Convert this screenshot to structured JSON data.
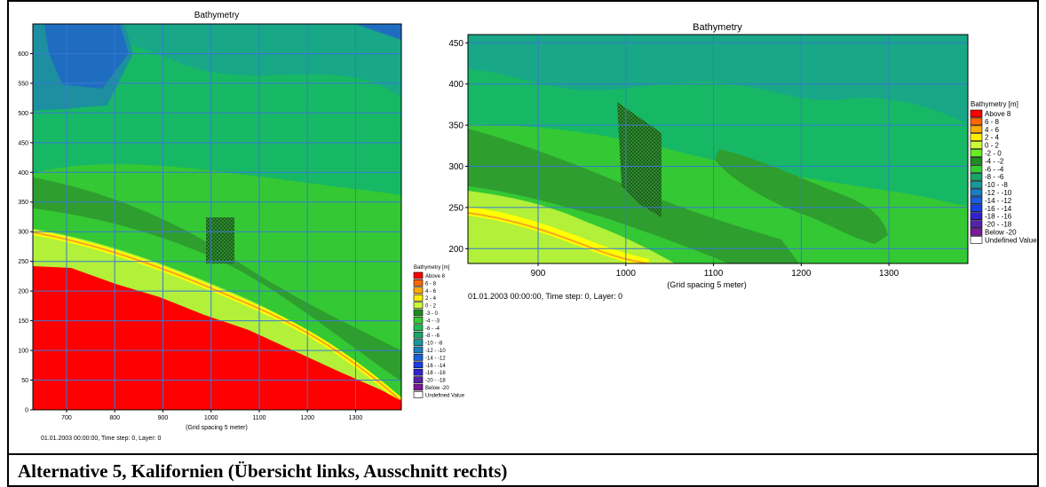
{
  "caption": "Alternative 5, Kalifornien (Übersicht links, Ausschnitt rechts)",
  "colors": {
    "land": "#ff0000",
    "zone_0_2": "#b2f03a",
    "zone_2_4": "#ffff00",
    "zone_4_6": "#f5a623",
    "zone_m2_m4": "#2e9e2e",
    "zone_m4_m6": "#34c834",
    "zone_m6_m8": "#17b865",
    "zone_m8_m10": "#18a787",
    "zone_m10_m12": "#1c8fa0",
    "zone_m12_m14": "#1f6dc0",
    "grid": "#3a78d4"
  },
  "legend_left": {
    "title": "Bathymetry [m]",
    "items": [
      {
        "label": "Above  8",
        "color": "#ff0000"
      },
      {
        "label": "6 -  8",
        "color": "#ff6600"
      },
      {
        "label": "4 -  6",
        "color": "#ffaa00"
      },
      {
        "label": "2 -  4",
        "color": "#ffee00"
      },
      {
        "label": "0 -  2",
        "color": "#ccff33"
      },
      {
        "label": "-3 -  0",
        "color": "#1e8c1e"
      },
      {
        "label": "-4 -  -3",
        "color": "#33cc33"
      },
      {
        "label": "-6 -  -4",
        "color": "#22bb55"
      },
      {
        "label": "-8 -  -6",
        "color": "#1aa66a"
      },
      {
        "label": "-10 -  -8",
        "color": "#199999"
      },
      {
        "label": "-12 - -10",
        "color": "#1a7fbf"
      },
      {
        "label": "-14 - -12",
        "color": "#1a5fd9"
      },
      {
        "label": "-16 - -14",
        "color": "#1a3fe6"
      },
      {
        "label": "-18 - -16",
        "color": "#3322cc"
      },
      {
        "label": "-20 - -18",
        "color": "#5522aa"
      },
      {
        "label": "Below -20",
        "color": "#7a1a9a"
      },
      {
        "label": "Undefined Value",
        "color": "#ffffff"
      }
    ]
  },
  "legend_right": {
    "title": "Bathymetry [m]",
    "items": [
      {
        "label": "Above  8",
        "color": "#ff0000"
      },
      {
        "label": "6 -  8",
        "color": "#ff6600"
      },
      {
        "label": "4 -  6",
        "color": "#ffaa00"
      },
      {
        "label": "2 -  4",
        "color": "#ffee00"
      },
      {
        "label": "0 -  2",
        "color": "#ccff33"
      },
      {
        "label": "-2 -  0",
        "color": "#66ee22"
      },
      {
        "label": "-4 -  -2",
        "color": "#1e8c1e"
      },
      {
        "label": "-6 -  -4",
        "color": "#33cc33"
      },
      {
        "label": "-8 -  -6",
        "color": "#1aa66a"
      },
      {
        "label": "-10 -  -8",
        "color": "#199999"
      },
      {
        "label": "-12 - -10",
        "color": "#1a7fbf"
      },
      {
        "label": "-14 - -12",
        "color": "#1a5fd9"
      },
      {
        "label": "-16 - -14",
        "color": "#1a3fe6"
      },
      {
        "label": "-18 - -16",
        "color": "#3322cc"
      },
      {
        "label": "-20 - -18",
        "color": "#5522aa"
      },
      {
        "label": "Below -20",
        "color": "#7a1a9a"
      },
      {
        "label": "Undefined Value",
        "color": "#ffffff"
      }
    ]
  },
  "chart_data": [
    {
      "type": "heatmap",
      "title": "Bathymetry",
      "xlabel": "(Grid spacing 5 meter)",
      "ylabel": "",
      "xlim": [
        630,
        1395
      ],
      "ylim": [
        0,
        650
      ],
      "xticks": [
        700,
        800,
        900,
        1000,
        1100,
        1200,
        1300
      ],
      "yticks": [
        0,
        50,
        100,
        150,
        200,
        250,
        300,
        350,
        400,
        450,
        500,
        550,
        600
      ],
      "grid": true,
      "legend_position": "right",
      "timestamp": "01.01.2003 00:00:00, Time step: 0, Layer: 0",
      "shoreline": [
        [
          630,
          240
        ],
        [
          800,
          205
        ],
        [
          950,
          170
        ],
        [
          1150,
          120
        ],
        [
          1300,
          70
        ],
        [
          1395,
          10
        ]
      ]
    },
    {
      "type": "heatmap",
      "title": "Bathymetry",
      "xlabel": "(Grid spacing 5 meter)",
      "ylabel": "",
      "xlim": [
        820,
        1390
      ],
      "ylim": [
        182,
        460
      ],
      "xticks": [
        900,
        1000,
        1100,
        1200,
        1300
      ],
      "yticks": [
        200,
        250,
        300,
        350,
        400,
        450
      ],
      "grid": true,
      "legend_position": "right",
      "timestamp": "01.01.2003 00:00:00, Time step: 0, Layer: 0"
    }
  ]
}
